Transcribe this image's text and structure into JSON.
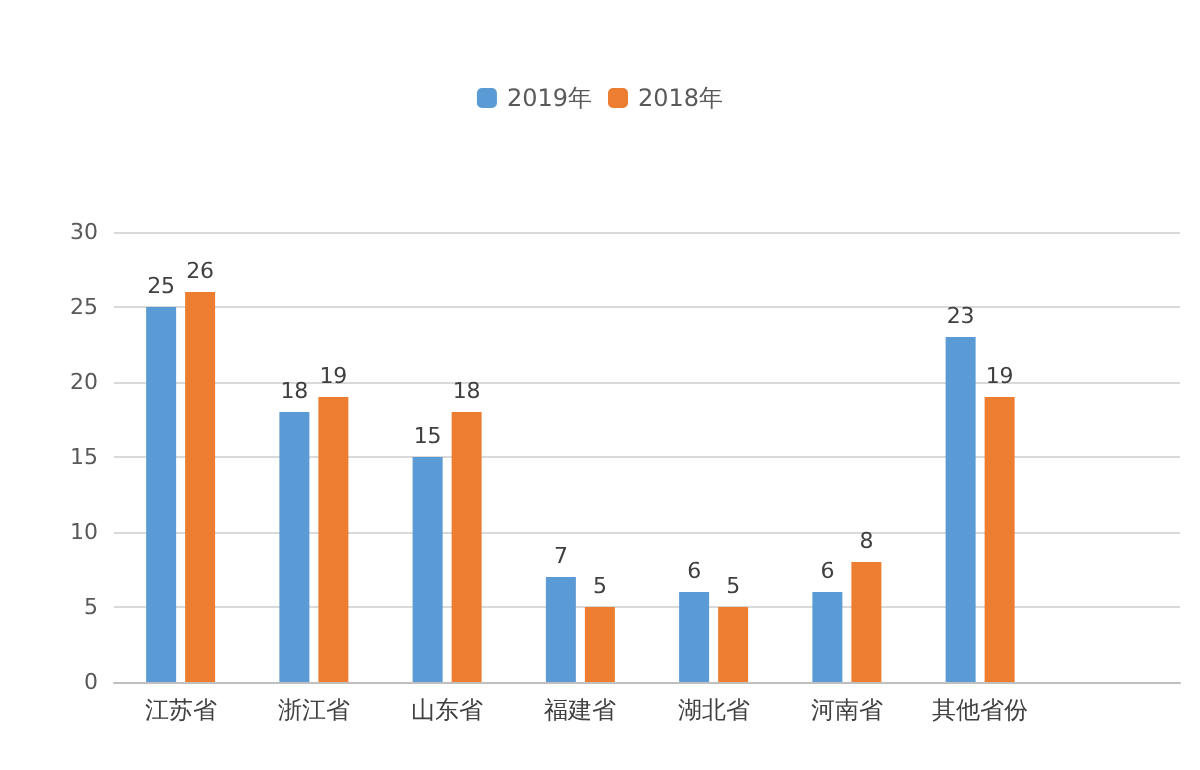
{
  "chart_data": {
    "type": "bar",
    "categories": [
      "江苏省",
      "浙江省",
      "山东省",
      "福建省",
      "湖北省",
      "河南省",
      "其他省份",
      null
    ],
    "series": [
      {
        "name": "2019年",
        "color": "#5b9bd5",
        "values": [
          25,
          18,
          15,
          7,
          6,
          6,
          23,
          null
        ]
      },
      {
        "name": "2018年",
        "color": "#ed7d31",
        "values": [
          26,
          19,
          18,
          5,
          5,
          8,
          19,
          null
        ]
      }
    ],
    "ylim": [
      0,
      30
    ],
    "yticks": [
      0,
      5,
      10,
      15,
      20,
      25,
      30
    ],
    "grid": "y",
    "legend": "top",
    "data_labels": true
  }
}
